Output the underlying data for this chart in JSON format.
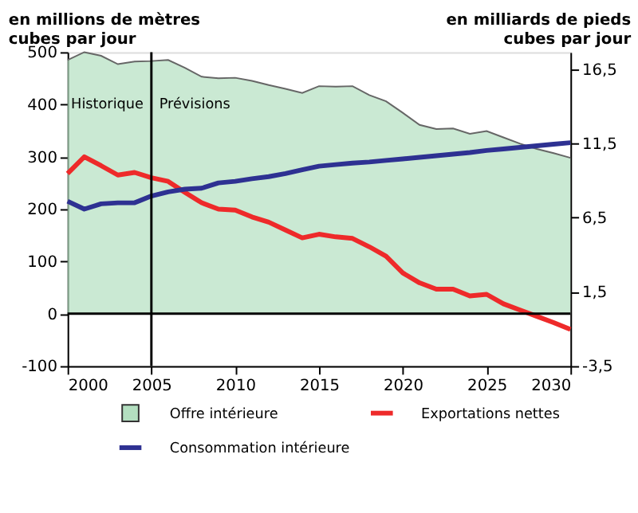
{
  "chart_data": {
    "type": "area",
    "ylabel": "en millions de mètres cubes par jour",
    "y2label": "en milliards de pieds cubes par jour",
    "x": [
      2000,
      2001,
      2002,
      2003,
      2004,
      2005,
      2006,
      2007,
      2008,
      2009,
      2010,
      2011,
      2012,
      2013,
      2014,
      2015,
      2016,
      2017,
      2018,
      2019,
      2020,
      2021,
      2022,
      2023,
      2024,
      2025,
      2026,
      2027,
      2028,
      2029,
      2030
    ],
    "series": [
      {
        "name": "Offre intérieure",
        "type": "area",
        "color": "#b3dfc0",
        "values": [
          485,
          500,
          493,
          477,
          482,
          483,
          485,
          470,
          453,
          450,
          451,
          445,
          437,
          430,
          422,
          435,
          434,
          435,
          418,
          406,
          384,
          361,
          353,
          354,
          344,
          349,
          337,
          325,
          315,
          307,
          298
        ]
      },
      {
        "name": "Exportations nettes",
        "type": "line",
        "color": "#ee2a2a",
        "values": [
          268,
          300,
          283,
          265,
          270,
          260,
          253,
          232,
          212,
          200,
          198,
          185,
          175,
          160,
          145,
          152,
          147,
          144,
          128,
          110,
          78,
          59,
          47,
          47,
          34,
          37,
          19,
          7,
          -5,
          -17,
          -30
        ]
      },
      {
        "name": "Consommation intérieure",
        "type": "line",
        "color": "#2e3192",
        "values": [
          215,
          200,
          210,
          212,
          212,
          225,
          233,
          238,
          240,
          250,
          253,
          258,
          262,
          268,
          275,
          282,
          285,
          288,
          290,
          293,
          296,
          299,
          302,
          305,
          308,
          312,
          315,
          318,
          321,
          324,
          327
        ]
      }
    ],
    "xlim": [
      2000,
      2030
    ],
    "xticks": [
      2000,
      2005,
      2010,
      2015,
      2020,
      2025,
      2030
    ],
    "ylim": [
      -100,
      500
    ],
    "yticks": [
      -100,
      0,
      100,
      200,
      300,
      400,
      500
    ],
    "y2lim": [
      -3.5,
      17.65
    ],
    "y2ticks": [
      {
        "value": -3.5,
        "label": "-3,5"
      },
      {
        "value": 1.5,
        "label": "1,5"
      },
      {
        "value": 6.5,
        "label": "6,5"
      },
      {
        "value": 11.5,
        "label": "11,5"
      },
      {
        "value": 16.5,
        "label": "16,5"
      }
    ],
    "ref_lines": [
      {
        "axis": "x",
        "value": 2005,
        "color": "#000000"
      },
      {
        "axis": "y",
        "value": 0,
        "color": "#000000"
      }
    ],
    "annotations": [
      "Historique",
      "Prévisions"
    ],
    "grid": false,
    "legend": "bottom",
    "line_style": "solid",
    "marker": "none"
  }
}
